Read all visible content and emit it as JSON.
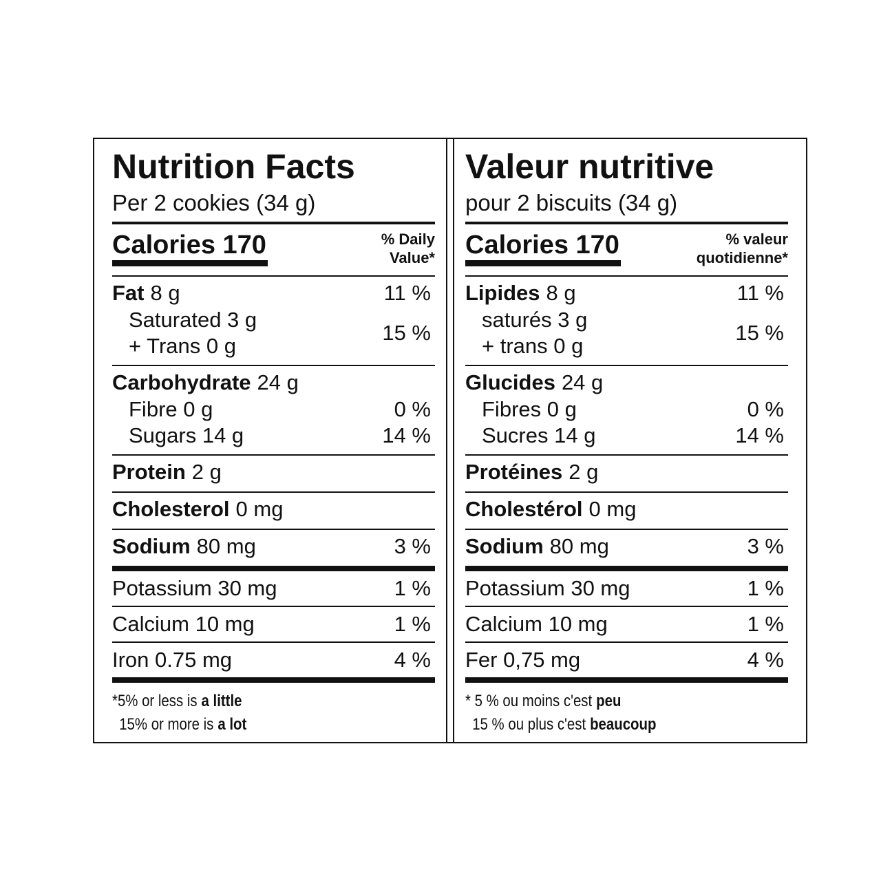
{
  "panels": [
    {
      "title": "Nutrition Facts",
      "serving": "Per 2 cookies (34 g)",
      "calories": "Calories 170",
      "dv_header": [
        "% Daily",
        "Value*"
      ],
      "sections": [
        [
          {
            "nutrient": "Fat",
            "amount": "8 g",
            "dv": "11 %"
          },
          {
            "sub": [
              "Saturated 3 g",
              "+ Trans 0 g"
            ],
            "dv": "15 %"
          }
        ],
        [
          {
            "nutrient": "Carbohydrate",
            "amount": "24 g"
          },
          {
            "sub": [
              "Fibre 0 g"
            ],
            "dv": "0 %"
          },
          {
            "sub": [
              "Sugars 14 g"
            ],
            "dv": "14 %"
          }
        ],
        [
          {
            "nutrient": "Protein",
            "amount": "2 g"
          }
        ],
        [
          {
            "nutrient": "Cholesterol",
            "amount": "0 mg"
          }
        ],
        [
          {
            "nutrient": "Sodium",
            "amount": "80 mg",
            "dv": "3 %"
          }
        ]
      ],
      "minerals": [
        {
          "text": "Potassium 30 mg",
          "dv": "1 %"
        },
        {
          "text": "Calcium 10 mg",
          "dv": "1 %"
        },
        {
          "text": "Iron 0.75 mg",
          "dv": "4 %"
        }
      ],
      "footnote": [
        {
          "text": "*5% or less is",
          "bold": "a little"
        },
        {
          "text": "15% or more is",
          "bold": "a lot"
        }
      ]
    },
    {
      "title": "Valeur nutritive",
      "serving": "pour 2 biscuits (34 g)",
      "calories": "Calories 170",
      "dv_header": [
        "% valeur",
        "quotidienne*"
      ],
      "sections": [
        [
          {
            "nutrient": "Lipides",
            "amount": "8 g",
            "dv": "11 %"
          },
          {
            "sub": [
              "saturés 3 g",
              "+ trans 0 g"
            ],
            "dv": "15 %"
          }
        ],
        [
          {
            "nutrient": "Glucides",
            "amount": "24 g"
          },
          {
            "sub": [
              "Fibres 0 g"
            ],
            "dv": "0 %"
          },
          {
            "sub": [
              "Sucres 14 g"
            ],
            "dv": "14 %"
          }
        ],
        [
          {
            "nutrient": "Protéines",
            "amount": "2 g"
          }
        ],
        [
          {
            "nutrient": "Cholestérol",
            "amount": "0 mg"
          }
        ],
        [
          {
            "nutrient": "Sodium",
            "amount": "80 mg",
            "dv": "3 %"
          }
        ]
      ],
      "minerals": [
        {
          "text": "Potassium 30 mg",
          "dv": "1 %"
        },
        {
          "text": "Calcium 10 mg",
          "dv": "1 %"
        },
        {
          "text": "Fer 0,75 mg",
          "dv": "4 %"
        }
      ],
      "footnote": [
        {
          "text": "* 5 % ou moins c'est",
          "bold": "peu"
        },
        {
          "text": "15 % ou plus c'est",
          "bold": "beaucoup"
        }
      ]
    }
  ]
}
